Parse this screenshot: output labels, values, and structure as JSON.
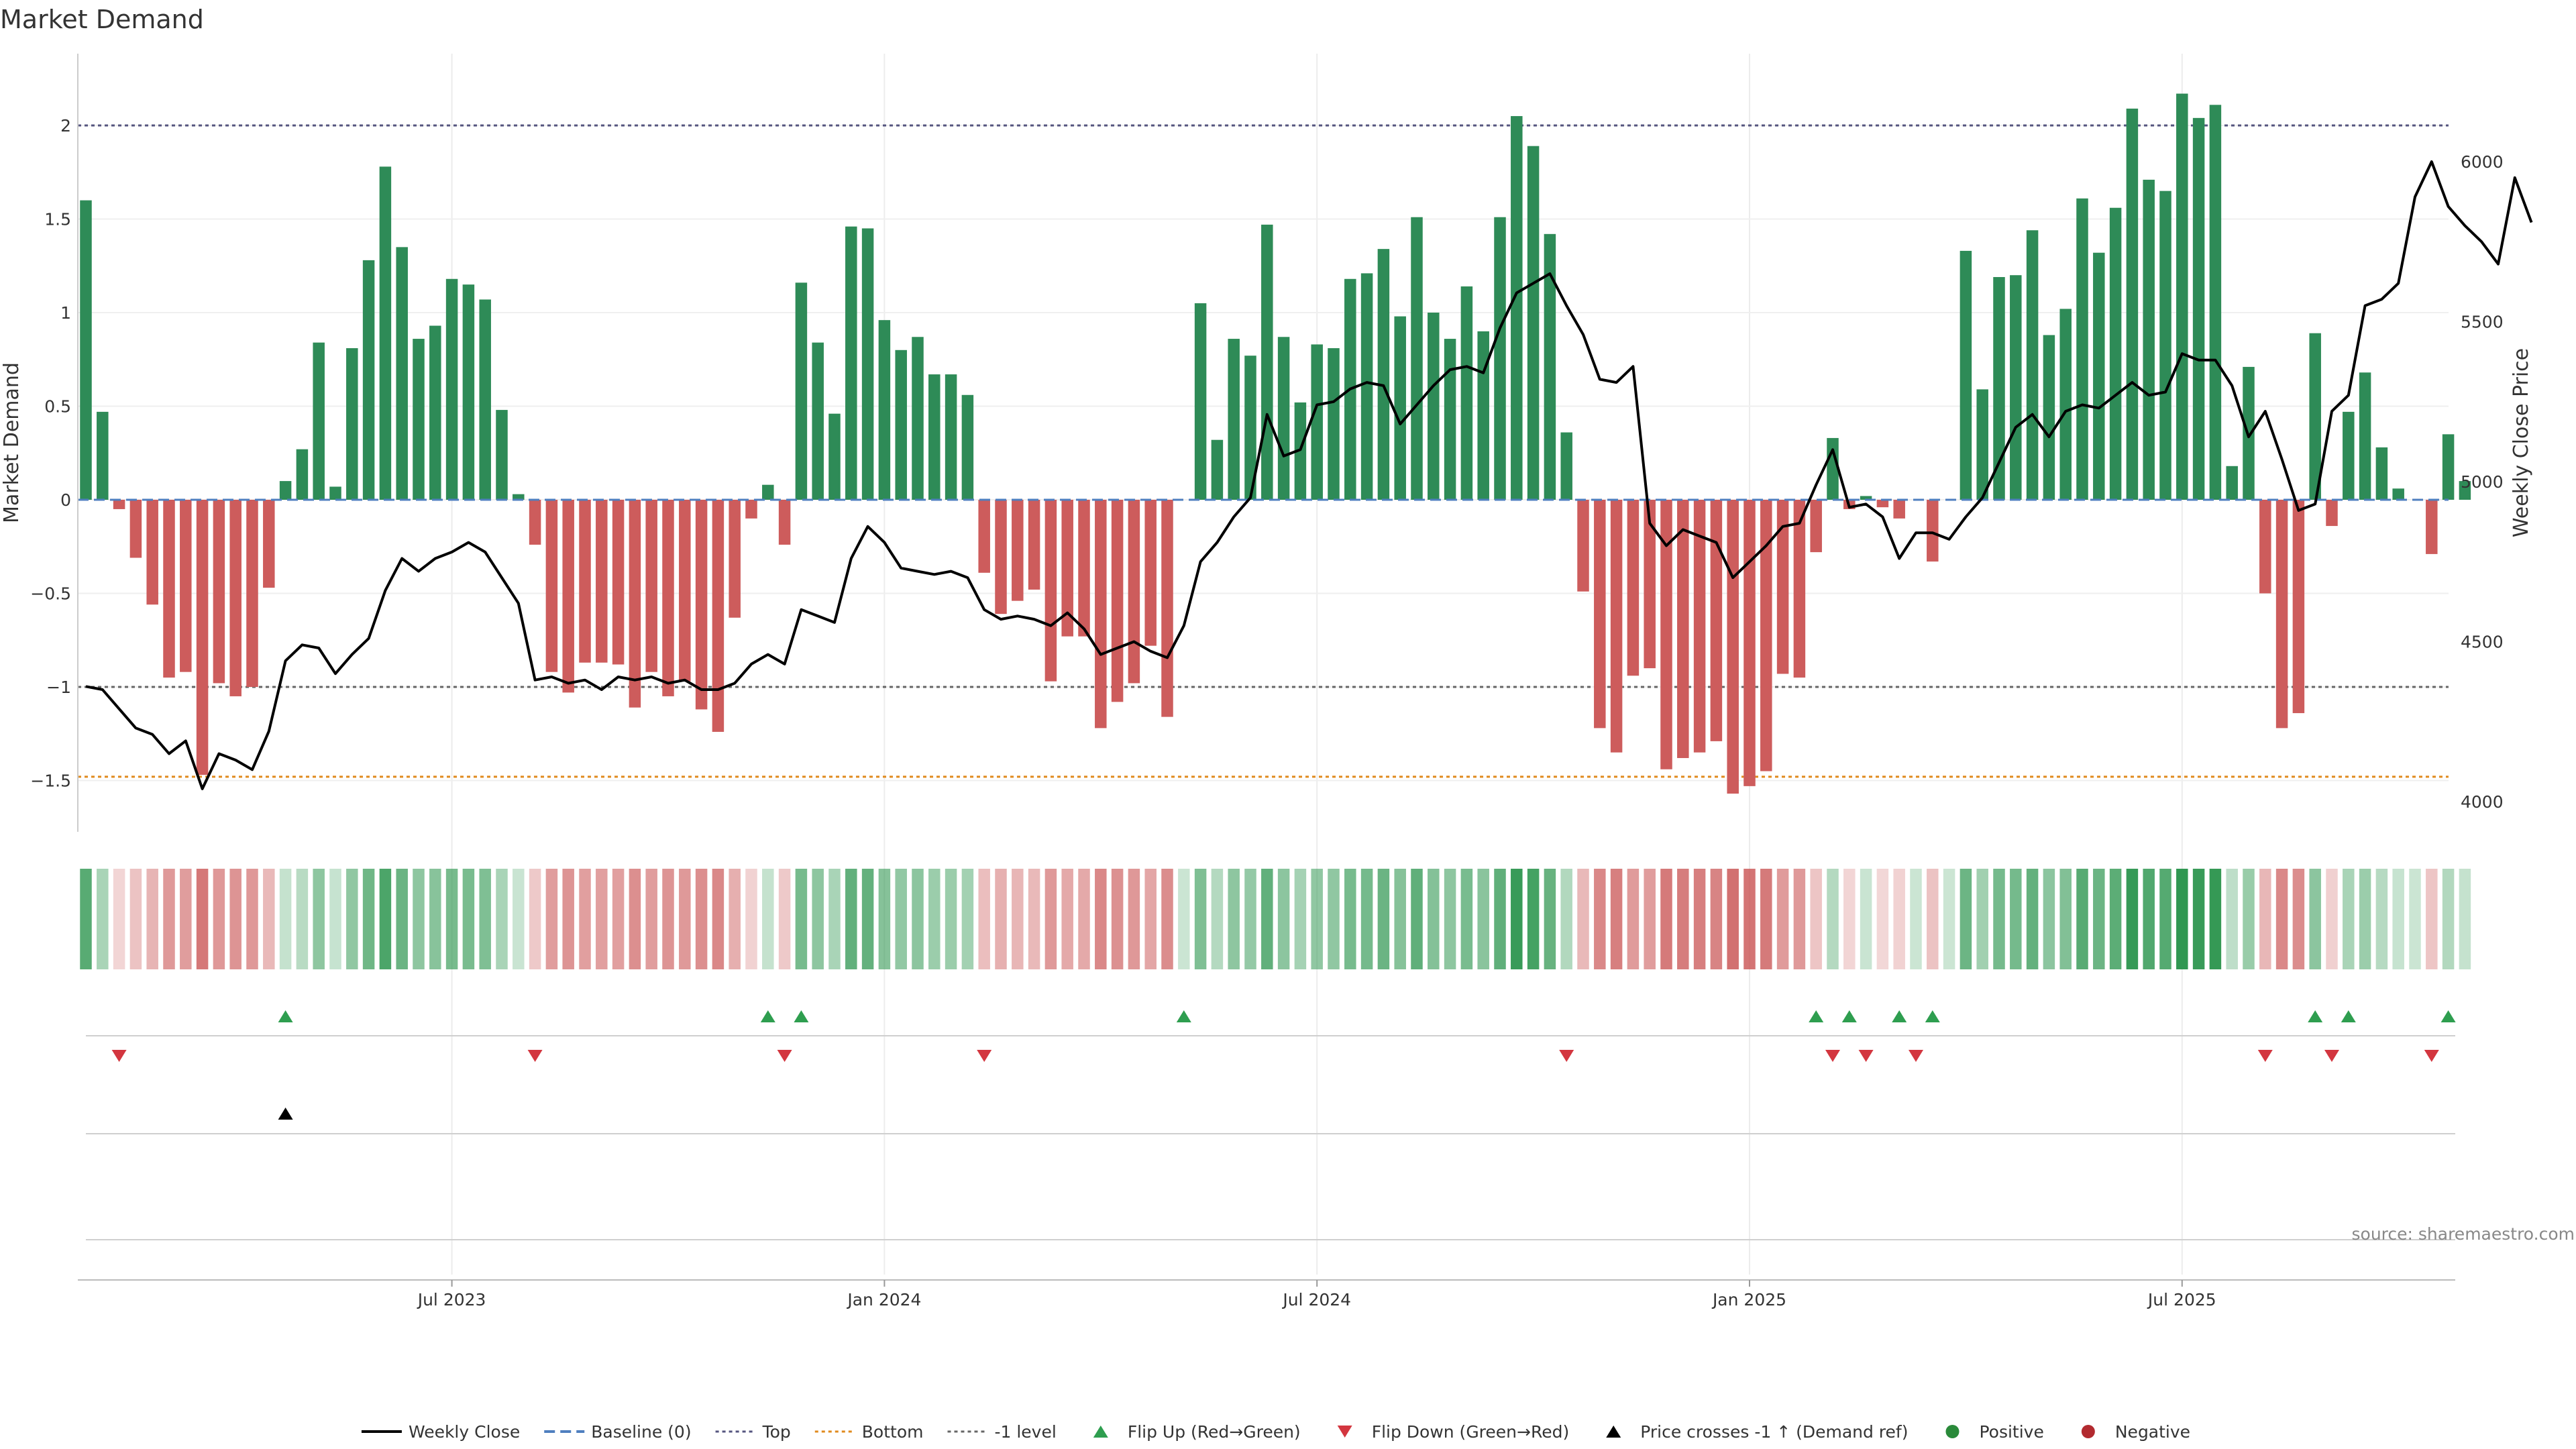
{
  "chart_data": {
    "type": "bar",
    "title": "Market Demand",
    "ylabel": "Market Demand",
    "y2label": "Weekly Close Price",
    "ylim": [
      -1.8,
      2.4
    ],
    "y2lim": [
      3950,
      6300
    ],
    "yticks": [
      2,
      1.5,
      1,
      0.5,
      0,
      -0.5,
      -1,
      -1.5
    ],
    "ytick_labels": [
      "2",
      "1.5",
      "1",
      "0.5",
      "0",
      "−0.5",
      "−1",
      "−1.5"
    ],
    "y2ticks": [
      6000,
      5500,
      5000,
      4500,
      4000
    ],
    "y2tick_labels": [
      "6000",
      "5500",
      "5000",
      "4500",
      "4000"
    ],
    "reference_lines": {
      "top": 2,
      "bottom": -1.48,
      "minus_one": -1,
      "baseline": 0
    },
    "xticks": [
      {
        "label": "Jul 2023",
        "week": 22
      },
      {
        "label": "Jan 2024",
        "week": 48
      },
      {
        "label": "Jul 2024",
        "week": 74
      },
      {
        "label": "Jan 2025",
        "week": 100
      },
      {
        "label": "Jul 2025",
        "week": 126
      }
    ],
    "demand": [
      1.6,
      0.47,
      -0.05,
      -0.31,
      -0.56,
      -0.95,
      -0.92,
      -1.47,
      -0.98,
      -1.05,
      -1.0,
      -0.47,
      0.1,
      0.27,
      0.84,
      0.07,
      0.81,
      1.28,
      1.78,
      1.35,
      0.86,
      0.93,
      1.18,
      1.15,
      1.07,
      0.48,
      0.03,
      -0.24,
      -0.92,
      -1.03,
      -0.87,
      -0.87,
      -0.88,
      -1.11,
      -0.92,
      -1.05,
      -0.97,
      -1.12,
      -1.24,
      -0.63,
      -0.1,
      0.08,
      -0.24,
      1.16,
      0.84,
      0.46,
      1.46,
      1.45,
      0.96,
      0.8,
      0.87,
      0.67,
      0.67,
      0.56,
      -0.39,
      -0.61,
      -0.54,
      -0.48,
      -0.97,
      -0.73,
      -0.73,
      -1.22,
      -1.08,
      -0.98,
      -0.78,
      -1.16,
      0.0,
      1.05,
      0.32,
      0.86,
      0.77,
      1.47,
      0.87,
      0.52,
      0.83,
      0.81,
      1.18,
      1.21,
      1.34,
      0.98,
      1.51,
      1.0,
      0.86,
      1.14,
      0.9,
      1.51,
      2.05,
      1.89,
      1.42,
      0.36,
      -0.49,
      -1.22,
      -1.35,
      -0.94,
      -0.9,
      -1.44,
      -1.38,
      -1.35,
      -1.29,
      -1.57,
      -1.53,
      -1.45,
      -0.93,
      -0.95,
      -0.28,
      0.33,
      -0.05,
      0.02,
      -0.04,
      -0.1,
      0.0,
      -0.33,
      0.0,
      1.33,
      0.59,
      1.19,
      1.2,
      1.44,
      0.88,
      1.02,
      1.61,
      1.32,
      1.56,
      2.09,
      1.71,
      1.65,
      2.17,
      2.04,
      2.11,
      0.18,
      0.71,
      -0.5,
      -1.22,
      -1.14,
      0.89,
      -0.14,
      0.47,
      0.68,
      0.28,
      0.06,
      0.0,
      -0.29,
      0.35,
      0.1
    ],
    "close": [
      4360,
      4350,
      4290,
      4230,
      4210,
      4150,
      4190,
      4040,
      4150,
      4130,
      4100,
      4220,
      4440,
      4490,
      4480,
      4400,
      4460,
      4510,
      4660,
      4760,
      4720,
      4760,
      4780,
      4810,
      4780,
      4700,
      4620,
      4380,
      4390,
      4370,
      4380,
      4350,
      4390,
      4380,
      4390,
      4370,
      4380,
      4350,
      4350,
      4370,
      4430,
      4460,
      4430,
      4600,
      4580,
      4560,
      4760,
      4860,
      4810,
      4730,
      4720,
      4710,
      4720,
      4700,
      4600,
      4570,
      4580,
      4570,
      4550,
      4590,
      4540,
      4460,
      4480,
      4500,
      4470,
      4450,
      4550,
      4750,
      4810,
      4890,
      4950,
      5210,
      5080,
      5100,
      5240,
      5250,
      5290,
      5310,
      5300,
      5180,
      5240,
      5300,
      5350,
      5360,
      5340,
      5480,
      5590,
      5620,
      5650,
      5550,
      5460,
      5320,
      5310,
      5360,
      4870,
      4800,
      4850,
      4830,
      4810,
      4700,
      4750,
      4800,
      4860,
      4870,
      4990,
      5100,
      4920,
      4930,
      4890,
      4760,
      4840,
      4840,
      4820,
      4890,
      4950,
      5060,
      5170,
      5210,
      5140,
      5220,
      5240,
      5230,
      5270,
      5310,
      5270,
      5280,
      5400,
      5380,
      5380,
      5300,
      5140,
      5220,
      5070,
      4910,
      4930,
      5220,
      5270,
      5550,
      5570,
      5620,
      5890,
      6000,
      5860,
      5800,
      5750,
      5680,
      5950,
      5810
    ],
    "weekly_strip_note": "One strip cell per week; green shades for positive demand, red shades for negative, intensity by magnitude.",
    "flip_up_weeks": [
      12,
      41,
      43,
      66,
      104,
      106,
      109,
      111,
      134,
      136,
      142
    ],
    "flip_down_weeks": [
      2,
      27,
      42,
      54,
      89,
      105,
      107,
      110,
      131,
      135,
      141
    ],
    "price_cross_weeks": [
      12
    ],
    "legend": [
      {
        "label": "Weekly Close",
        "kind": "line",
        "color": "#000000"
      },
      {
        "label": "Baseline (0)",
        "kind": "dash",
        "color": "#4f7fbf"
      },
      {
        "label": "Top",
        "kind": "dot",
        "color": "#55557f"
      },
      {
        "label": "Bottom",
        "kind": "dot",
        "color": "#e08a1e"
      },
      {
        "label": "-1 level",
        "kind": "dot",
        "color": "#666666"
      },
      {
        "label": "Flip Up (Red→Green)",
        "kind": "tri-up",
        "color": "#2e9e4f"
      },
      {
        "label": "Flip Down (Green→Red)",
        "kind": "tri-down",
        "color": "#d3363f"
      },
      {
        "label": "Price crosses -1 ↑ (Demand ref)",
        "kind": "tri-up",
        "color": "#000000"
      },
      {
        "label": "Positive",
        "kind": "dot-marker",
        "color": "#2a8a3a"
      },
      {
        "label": "Negative",
        "kind": "dot-marker",
        "color": "#b22a2f"
      }
    ],
    "source": "source: sharemaestro.com",
    "colors": {
      "positive": "#2e8b57",
      "negative": "#cd5c5c",
      "close": "#000000"
    }
  }
}
